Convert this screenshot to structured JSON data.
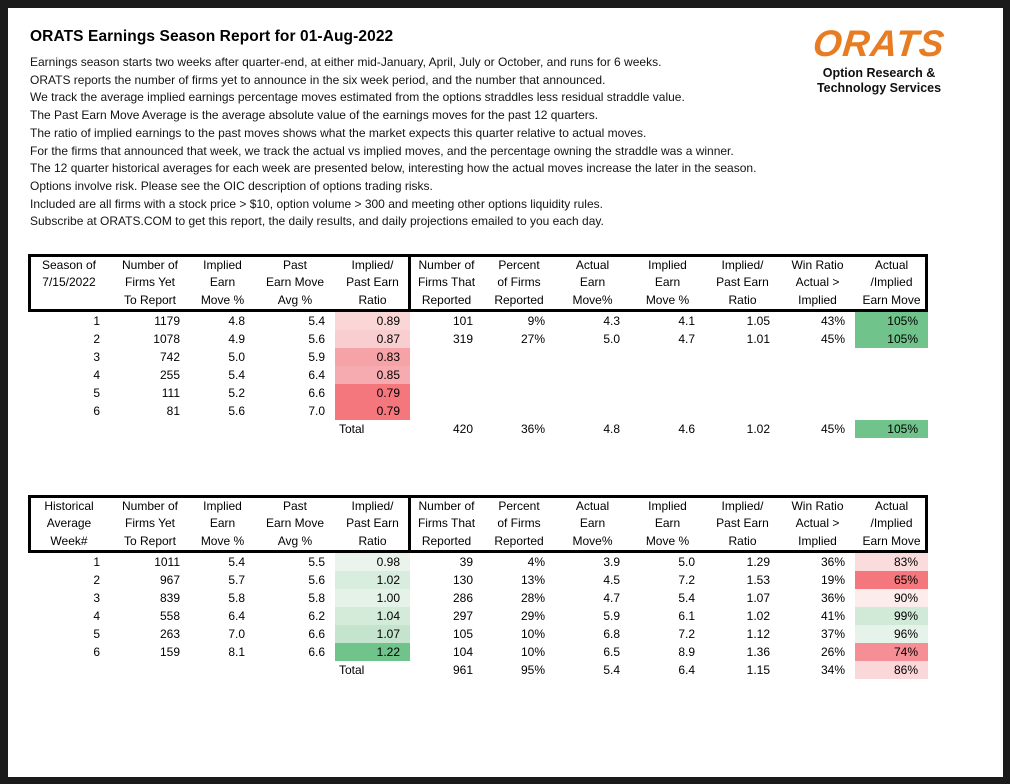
{
  "header": {
    "title": "ORATS Earnings Season Report for 01-Aug-2022",
    "intro_lines": [
      "Earnings season starts two weeks after quarter-end, at either mid-January, April, July or October, and runs for 6 weeks.",
      "ORATS reports the number of firms yet to announce in the six week period, and the number that announced.",
      "We track the average implied earnings percentage moves estimated from the options straddles less residual straddle value.",
      "The Past Earn Move Average is the average absolute value of the earnings moves for the past 12 quarters.",
      "The ratio of implied earnings to the past moves shows what the market expects this quarter relative to actual moves.",
      "For the firms that announced that week, we track the actual vs implied moves, and the percentage owning the straddle was a winner.",
      "The 12 quarter historical averages for each week are presented below, interesting how the actual moves increase the later in the season.",
      "Options involve risk. Please see the OIC description of options trading risks.",
      "Included are all firms with a stock price > $10, option volume > 300 and meeting other options liquidity rules.",
      "Subscribe at ORATS.COM to get this report, the daily results, and daily projections emailed to you each day."
    ]
  },
  "logo": {
    "brand": "ORATS",
    "tagline_line1": "Option Research &",
    "tagline_line2": "Technology Services",
    "brand_color": "#E87C22"
  },
  "tables": [
    {
      "name": "current-season-table",
      "column_headers": [
        [
          "Season of",
          "7/15/2022",
          ""
        ],
        [
          "Number of",
          "Firms Yet",
          "To Report"
        ],
        [
          "Implied",
          "Earn",
          "Move %"
        ],
        [
          "Past",
          "Earn Move",
          "Avg %"
        ],
        [
          "Implied/",
          "Past Earn",
          "Ratio"
        ],
        [
          "Number of",
          "Firms That",
          "Reported"
        ],
        [
          "Percent",
          "of Firms",
          "Reported"
        ],
        [
          "Actual",
          "Earn",
          "Move%"
        ],
        [
          "Implied",
          "Earn",
          "Move %"
        ],
        [
          "Implied/",
          "Past Earn",
          "Ratio"
        ],
        [
          "Win Ratio",
          "Actual >",
          "Implied"
        ],
        [
          "Actual",
          "/Implied",
          "Earn Move"
        ]
      ],
      "rows": [
        {
          "cells": [
            "1",
            "1179",
            "4.8",
            "5.4",
            "0.89",
            "101",
            "9%",
            "4.3",
            "4.1",
            "1.05",
            "43%",
            "105%"
          ],
          "ratio_color": "#FAD6D7",
          "ai_color": "#6FC38B"
        },
        {
          "cells": [
            "2",
            "1078",
            "4.9",
            "5.6",
            "0.87",
            "319",
            "27%",
            "5.0",
            "4.7",
            "1.01",
            "45%",
            "105%"
          ],
          "ratio_color": "#F9CED0",
          "ai_color": "#6FC38B"
        },
        {
          "cells": [
            "3",
            "742",
            "5.0",
            "5.9",
            "0.83",
            "",
            "",
            "",
            "",
            "",
            "",
            ""
          ],
          "ratio_color": "#F6A3A8",
          "ai_color": ""
        },
        {
          "cells": [
            "4",
            "255",
            "5.4",
            "6.4",
            "0.85",
            "",
            "",
            "",
            "",
            "",
            "",
            ""
          ],
          "ratio_color": "#F6ABB0",
          "ai_color": ""
        },
        {
          "cells": [
            "5",
            "111",
            "5.2",
            "6.6",
            "0.79",
            "",
            "",
            "",
            "",
            "",
            "",
            ""
          ],
          "ratio_color": "#F4777D",
          "ai_color": ""
        },
        {
          "cells": [
            "6",
            "81",
            "5.6",
            "7.0",
            "0.79",
            "",
            "",
            "",
            "",
            "",
            "",
            ""
          ],
          "ratio_color": "#F4777D",
          "ai_color": ""
        }
      ],
      "total_row": {
        "cells": [
          "",
          "",
          "",
          "",
          "Total",
          "420",
          "36%",
          "4.8",
          "4.6",
          "1.02",
          "45%",
          "105%"
        ],
        "ratio_color": "",
        "ai_color": "#6FC38B"
      }
    },
    {
      "name": "historical-average-table",
      "column_headers": [
        [
          "Historical",
          "Average",
          "Week#"
        ],
        [
          "Number of",
          "Firms Yet",
          "To Report"
        ],
        [
          "Implied",
          "Earn",
          "Move %"
        ],
        [
          "Past",
          "Earn Move",
          "Avg %"
        ],
        [
          "Implied/",
          "Past Earn",
          "Ratio"
        ],
        [
          "Number of",
          "Firms That",
          "Reported"
        ],
        [
          "Percent",
          "of Firms",
          "Reported"
        ],
        [
          "Actual",
          "Earn",
          "Move%"
        ],
        [
          "Implied",
          "Earn",
          "Move %"
        ],
        [
          "Implied/",
          "Past Earn",
          "Ratio"
        ],
        [
          "Win Ratio",
          "Actual >",
          "Implied"
        ],
        [
          "Actual",
          "/Implied",
          "Earn Move"
        ]
      ],
      "rows": [
        {
          "cells": [
            "1",
            "1011",
            "5.4",
            "5.5",
            "0.98",
            "39",
            "4%",
            "3.9",
            "5.0",
            "1.29",
            "36%",
            "83%"
          ],
          "ratio_color": "#EAF4ED",
          "ai_color": "#FADCDD"
        },
        {
          "cells": [
            "2",
            "967",
            "5.7",
            "5.6",
            "1.02",
            "130",
            "13%",
            "4.5",
            "7.2",
            "1.53",
            "19%",
            "65%"
          ],
          "ratio_color": "#D8EDDE",
          "ai_color": "#F4777D"
        },
        {
          "cells": [
            "3",
            "839",
            "5.8",
            "5.8",
            "1.00",
            "286",
            "28%",
            "4.7",
            "5.4",
            "1.07",
            "36%",
            "90%"
          ],
          "ratio_color": "#E5F2E8",
          "ai_color": "#FCECEC"
        },
        {
          "cells": [
            "4",
            "558",
            "6.4",
            "6.2",
            "1.04",
            "297",
            "29%",
            "5.9",
            "6.1",
            "1.02",
            "41%",
            "99%"
          ],
          "ratio_color": "#D4EBDA",
          "ai_color": "#D1EAD8"
        },
        {
          "cells": [
            "5",
            "263",
            "7.0",
            "6.6",
            "1.07",
            "105",
            "10%",
            "6.8",
            "7.2",
            "1.12",
            "37%",
            "96%"
          ],
          "ratio_color": "#C5E4CE",
          "ai_color": "#E6F3EA"
        },
        {
          "cells": [
            "6",
            "159",
            "8.1",
            "6.6",
            "1.22",
            "104",
            "10%",
            "6.5",
            "8.9",
            "1.36",
            "26%",
            "74%"
          ],
          "ratio_color": "#6FC38B",
          "ai_color": "#F68F95"
        }
      ],
      "total_row": {
        "cells": [
          "",
          "",
          "",
          "",
          "Total",
          "961",
          "95%",
          "5.4",
          "6.4",
          "1.15",
          "34%",
          "86%"
        ],
        "ratio_color": "",
        "ai_color": "#FAD7D8"
      }
    }
  ],
  "column_keys": [
    "week",
    "firms-yet-to-report",
    "implied-earn-move-pct",
    "past-earn-move-avg-pct",
    "implied-past-earn-ratio",
    "firms-reported",
    "percent-firms-reported",
    "actual-earn-move-pct",
    "implied-earn-move-reported-pct",
    "implied-past-earn-ratio-reported",
    "win-ratio",
    "actual-implied-earn-move"
  ]
}
